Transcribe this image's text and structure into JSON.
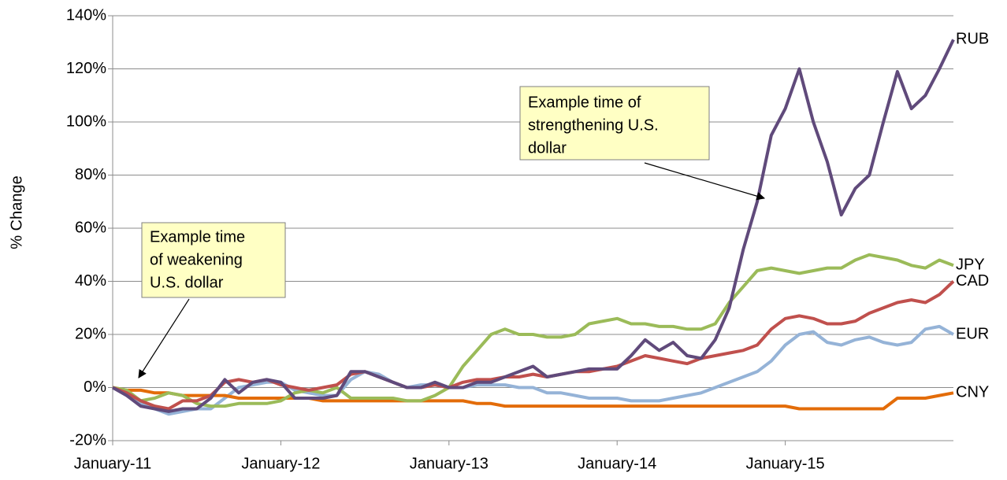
{
  "chart_data": {
    "type": "line",
    "y_label": "% Change",
    "x": [
      0,
      1,
      2,
      3,
      4,
      5,
      6,
      7,
      8,
      9,
      10,
      11,
      12,
      13,
      14,
      15,
      16,
      17,
      18,
      19,
      20,
      21,
      22,
      23,
      24,
      25,
      26,
      27,
      28,
      29,
      30,
      31,
      32,
      33,
      34,
      35,
      36,
      37,
      38,
      39,
      40,
      41,
      42,
      43,
      44,
      45,
      46,
      47,
      48,
      49,
      50,
      51,
      52,
      53,
      54,
      55,
      56,
      57,
      58,
      59,
      60
    ],
    "xlim": [
      0,
      60
    ],
    "xticks": [
      {
        "value": 0,
        "label": "January-11"
      },
      {
        "value": 12,
        "label": "January-12"
      },
      {
        "value": 24,
        "label": "January-13"
      },
      {
        "value": 36,
        "label": "January-14"
      },
      {
        "value": 48,
        "label": "January-15"
      }
    ],
    "ylim": [
      -20,
      140
    ],
    "yticks": [
      {
        "value": -20,
        "label": "-20%"
      },
      {
        "value": 0,
        "label": "0%"
      },
      {
        "value": 20,
        "label": "20%"
      },
      {
        "value": 40,
        "label": "40%"
      },
      {
        "value": 60,
        "label": "60%"
      },
      {
        "value": 80,
        "label": "80%"
      },
      {
        "value": 100,
        "label": "100%"
      },
      {
        "value": 120,
        "label": "120%"
      },
      {
        "value": 140,
        "label": "140%"
      }
    ],
    "grid": true,
    "series": [
      {
        "name": "EUR",
        "color": "#95b3d7",
        "values": [
          0,
          -2,
          -6,
          -8,
          -10,
          -9,
          -8,
          -8,
          -4,
          0,
          1,
          2,
          2,
          -1,
          -2,
          -3,
          -3,
          3,
          6,
          5,
          2,
          0,
          1,
          1,
          0,
          0,
          1,
          1,
          1,
          0,
          0,
          -2,
          -2,
          -3,
          -4,
          -4,
          -4,
          -5,
          -5,
          -5,
          -4,
          -3,
          -2,
          0,
          2,
          4,
          6,
          10,
          16,
          20,
          21,
          17,
          16,
          18,
          19,
          17,
          16,
          17,
          22,
          23,
          20
        ]
      },
      {
        "name": "CNY",
        "color": "#e36c09",
        "values": [
          0,
          -1,
          -1,
          -2,
          -2,
          -3,
          -3,
          -3,
          -3,
          -4,
          -4,
          -4,
          -4,
          -4,
          -4,
          -5,
          -5,
          -5,
          -5,
          -5,
          -5,
          -5,
          -5,
          -5,
          -5,
          -5,
          -6,
          -6,
          -7,
          -7,
          -7,
          -7,
          -7,
          -7,
          -7,
          -7,
          -7,
          -7,
          -7,
          -7,
          -7,
          -7,
          -7,
          -7,
          -7,
          -7,
          -7,
          -7,
          -7,
          -8,
          -8,
          -8,
          -8,
          -8,
          -8,
          -8,
          -4,
          -4,
          -4,
          -3,
          -2
        ]
      },
      {
        "name": "JPY",
        "color": "#9bbb59",
        "values": [
          0,
          -1,
          -5,
          -4,
          -2,
          -3,
          -6,
          -7,
          -7,
          -6,
          -6,
          -6,
          -5,
          -2,
          -1,
          -2,
          0,
          -4,
          -4,
          -4,
          -4,
          -5,
          -5,
          -3,
          0,
          8,
          14,
          20,
          22,
          20,
          20,
          19,
          19,
          20,
          24,
          25,
          26,
          24,
          24,
          23,
          23,
          22,
          22,
          24,
          32,
          38,
          44,
          45,
          44,
          43,
          44,
          45,
          45,
          48,
          50,
          49,
          48,
          46,
          45,
          48,
          46
        ]
      },
      {
        "name": "CAD",
        "color": "#c0504d",
        "values": [
          0,
          -2,
          -5,
          -7,
          -8,
          -5,
          -5,
          -3,
          2,
          3,
          2,
          3,
          1,
          0,
          -1,
          0,
          1,
          5,
          6,
          4,
          2,
          0,
          0,
          1,
          0,
          2,
          3,
          3,
          4,
          4,
          5,
          4,
          5,
          6,
          6,
          7,
          8,
          10,
          12,
          11,
          10,
          9,
          11,
          12,
          13,
          14,
          16,
          22,
          26,
          27,
          26,
          24,
          24,
          25,
          28,
          30,
          32,
          33,
          32,
          35,
          40
        ]
      },
      {
        "name": "RUB",
        "color": "#604a7b",
        "values": [
          0,
          -3,
          -7,
          -8,
          -9,
          -8,
          -8,
          -4,
          3,
          -2,
          2,
          3,
          2,
          -4,
          -4,
          -4,
          -3,
          6,
          6,
          4,
          2,
          0,
          0,
          2,
          0,
          0,
          2,
          2,
          4,
          6,
          8,
          4,
          5,
          6,
          7,
          7,
          7,
          12,
          18,
          14,
          17,
          12,
          11,
          18,
          30,
          52,
          70,
          95,
          105,
          120,
          100,
          85,
          65,
          75,
          80,
          100,
          119,
          105,
          110,
          120,
          131
        ]
      }
    ],
    "annotations": [
      {
        "lines": [
          "Example time of",
          "strengthening U.S.",
          "dollar"
        ]
      },
      {
        "lines": [
          "Example time",
          "of weakening",
          "U.S. dollar"
        ]
      }
    ]
  }
}
